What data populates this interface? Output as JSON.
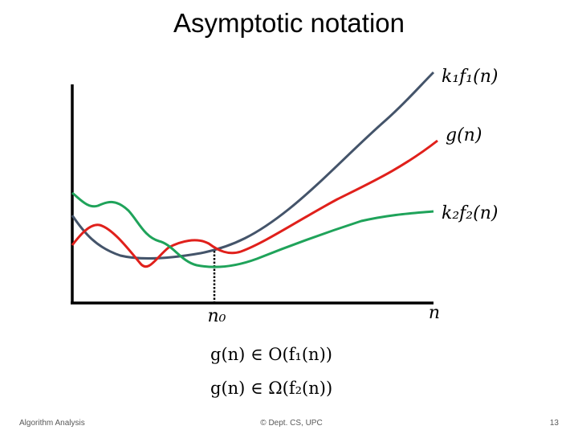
{
  "title": "Asymptotic notation",
  "curve_labels": {
    "upper": "k₁f₁(n)",
    "middle": "g(n)",
    "lower": "k₂f₂(n)"
  },
  "axis_labels": {
    "threshold": "n₀",
    "x": "n"
  },
  "formulas": [
    "g(n) ∈ O(f₁(n))",
    "g(n) ∈ Ω(f₂(n))"
  ],
  "footer": {
    "left": "Algorithm Analysis",
    "center": "© Dept. CS, UPC",
    "page": "13"
  }
}
